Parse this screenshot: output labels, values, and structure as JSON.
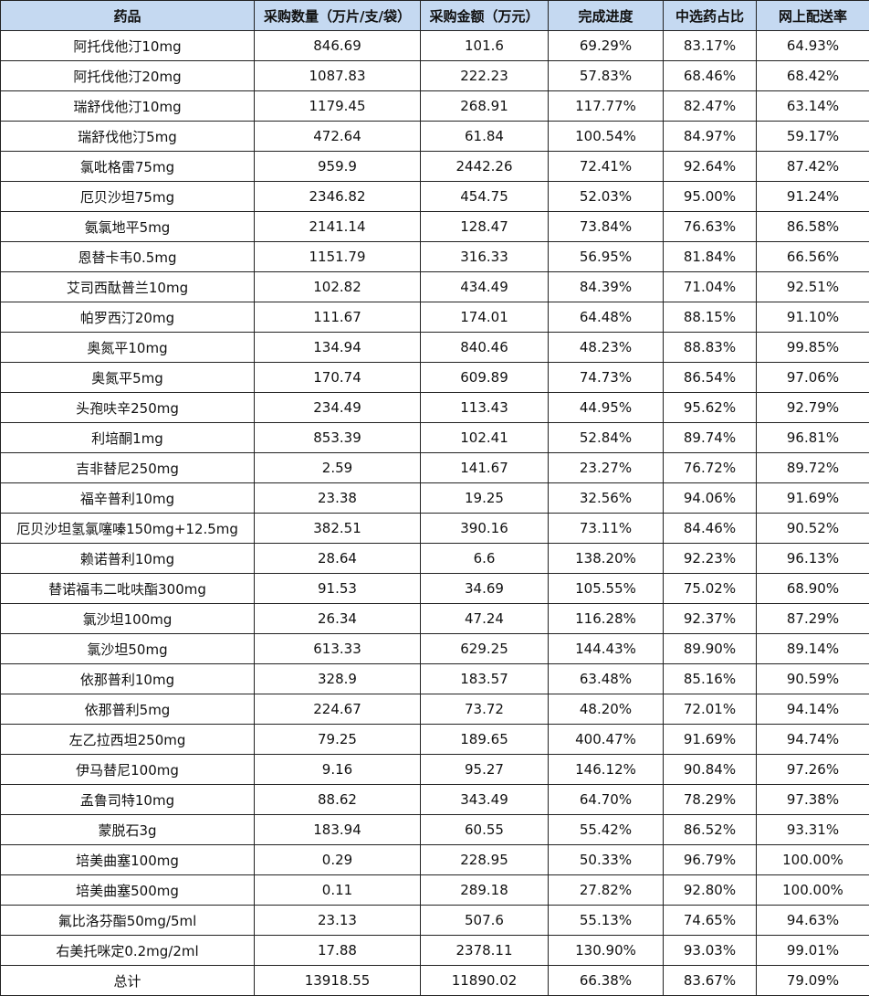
{
  "headers": [
    "药品",
    "采购数量（万片/支/袋）",
    "采购金额（万元）",
    "完成进度",
    "中选药占比",
    "网上配送率"
  ],
  "header_bg": "#c5d9f1",
  "rows": [
    [
      "阿托伐他汀10mg",
      "846.69",
      "101.6",
      "69.29%",
      "83.17%",
      "64.93%"
    ],
    [
      "阿托伐他汀20mg",
      "1087.83",
      "222.23",
      "57.83%",
      "68.46%",
      "68.42%"
    ],
    [
      "瑞舒伐他汀10mg",
      "1179.45",
      "268.91",
      "117.77%",
      "82.47%",
      "63.14%"
    ],
    [
      "瑞舒伐他汀5mg",
      "472.64",
      "61.84",
      "100.54%",
      "84.97%",
      "59.17%"
    ],
    [
      "氯吡格雷75mg",
      "959.9",
      "2442.26",
      "72.41%",
      "92.64%",
      "87.42%"
    ],
    [
      "厄贝沙坦75mg",
      "2346.82",
      "454.75",
      "52.03%",
      "95.00%",
      "91.24%"
    ],
    [
      "氨氯地平5mg",
      "2141.14",
      "128.47",
      "73.84%",
      "76.63%",
      "86.58%"
    ],
    [
      "恩替卡韦0.5mg",
      "1151.79",
      "316.33",
      "56.95%",
      "81.84%",
      "66.56%"
    ],
    [
      "艾司西酞普兰10mg",
      "102.82",
      "434.49",
      "84.39%",
      "71.04%",
      "92.51%"
    ],
    [
      "帕罗西汀20mg",
      "111.67",
      "174.01",
      "64.48%",
      "88.15%",
      "91.10%"
    ],
    [
      "奥氮平10mg",
      "134.94",
      "840.46",
      "48.23%",
      "88.83%",
      "99.85%"
    ],
    [
      "奥氮平5mg",
      "170.74",
      "609.89",
      "74.73%",
      "86.54%",
      "97.06%"
    ],
    [
      "头孢呋辛250mg",
      "234.49",
      "113.43",
      "44.95%",
      "95.62%",
      "92.79%"
    ],
    [
      "利培酮1mg",
      "853.39",
      "102.41",
      "52.84%",
      "89.74%",
      "96.81%"
    ],
    [
      "吉非替尼250mg",
      "2.59",
      "141.67",
      "23.27%",
      "76.72%",
      "89.72%"
    ],
    [
      "福辛普利10mg",
      "23.38",
      "19.25",
      "32.56%",
      "94.06%",
      "91.69%"
    ],
    [
      "厄贝沙坦氢氯噻嗪150mg+12.5mg",
      "382.51",
      "390.16",
      "73.11%",
      "84.46%",
      "90.52%"
    ],
    [
      "赖诺普利10mg",
      "28.64",
      "6.6",
      "138.20%",
      "92.23%",
      "96.13%"
    ],
    [
      "替诺福韦二吡呋酯300mg",
      "91.53",
      "34.69",
      "105.55%",
      "75.02%",
      "68.90%"
    ],
    [
      "氯沙坦100mg",
      "26.34",
      "47.24",
      "116.28%",
      "92.37%",
      "87.29%"
    ],
    [
      "氯沙坦50mg",
      "613.33",
      "629.25",
      "144.43%",
      "89.90%",
      "89.14%"
    ],
    [
      "依那普利10mg",
      "328.9",
      "183.57",
      "63.48%",
      "85.16%",
      "90.59%"
    ],
    [
      "依那普利5mg",
      "224.67",
      "73.72",
      "48.20%",
      "72.01%",
      "94.14%"
    ],
    [
      "左乙拉西坦250mg",
      "79.25",
      "189.65",
      "400.47%",
      "91.69%",
      "94.74%"
    ],
    [
      "伊马替尼100mg",
      "9.16",
      "95.27",
      "146.12%",
      "90.84%",
      "97.26%"
    ],
    [
      "孟鲁司特10mg",
      "88.62",
      "343.49",
      "64.70%",
      "78.29%",
      "97.38%"
    ],
    [
      "蒙脱石3g",
      "183.94",
      "60.55",
      "55.42%",
      "86.52%",
      "93.31%"
    ],
    [
      "培美曲塞100mg",
      "0.29",
      "228.95",
      "50.33%",
      "96.79%",
      "100.00%"
    ],
    [
      "培美曲塞500mg",
      "0.11",
      "289.18",
      "27.82%",
      "92.80%",
      "100.00%"
    ],
    [
      "氟比洛芬酯50mg/5ml",
      "23.13",
      "507.6",
      "55.13%",
      "74.65%",
      "94.63%"
    ],
    [
      "右美托咪定0.2mg/2ml",
      "17.88",
      "2378.11",
      "130.90%",
      "93.03%",
      "99.01%"
    ],
    [
      "总计",
      "13918.55",
      "11890.02",
      "66.38%",
      "83.67%",
      "79.09%"
    ]
  ]
}
